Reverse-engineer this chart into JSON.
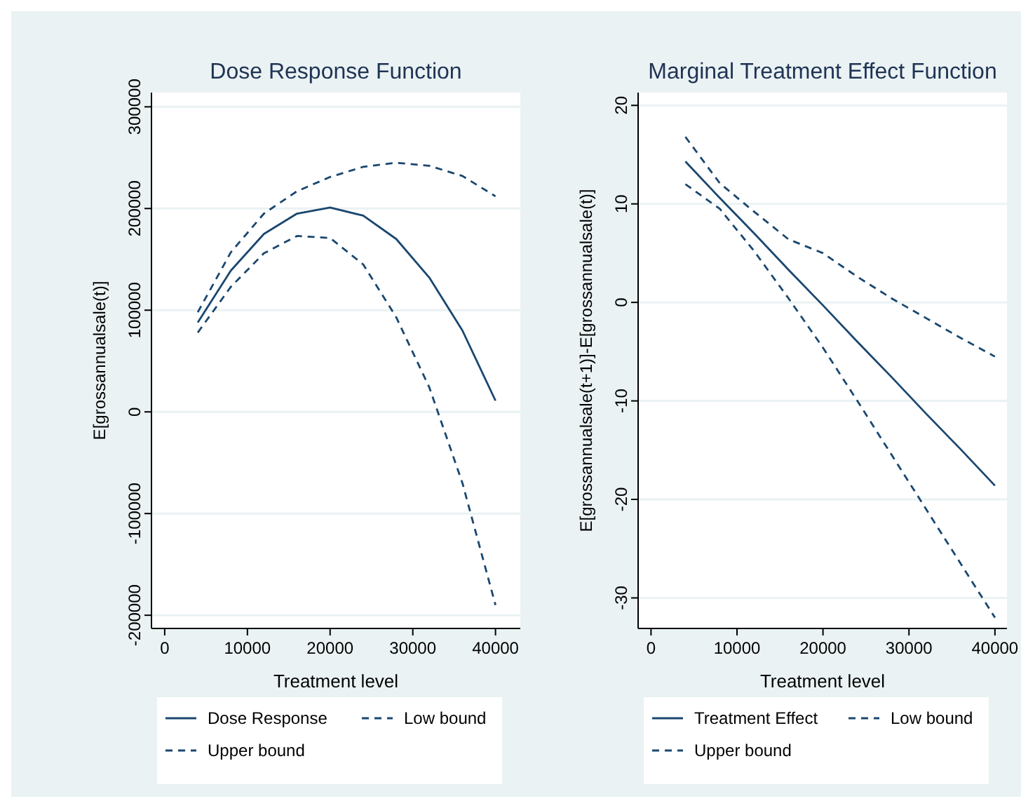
{
  "chart_data": [
    {
      "type": "line",
      "title": "Dose Response Function",
      "xlabel": "Treatment level",
      "ylabel": "E[grossannualsale(t)]",
      "x": [
        4000,
        8000,
        12000,
        16000,
        20000,
        24000,
        28000,
        32000,
        36000,
        40000
      ],
      "series": [
        {
          "name": "Dose Response",
          "color": "#1a476f",
          "line_style": "solid",
          "values": [
            88000,
            139000,
            175000,
            195000,
            201000,
            193000,
            170000,
            132000,
            80000,
            11000
          ]
        },
        {
          "name": "Low bound",
          "color": "#1a476f",
          "line_style": "dashed",
          "values": [
            78000,
            123000,
            156000,
            173000,
            171000,
            145000,
            93000,
            24000,
            -70000,
            -190000
          ]
        },
        {
          "name": "Upper bound",
          "color": "#1a476f",
          "line_style": "dashed",
          "values": [
            98000,
            157000,
            195000,
            217000,
            231000,
            241000,
            245000,
            242000,
            232000,
            212000
          ]
        }
      ],
      "xlim": [
        -1600,
        43000
      ],
      "xticks": [
        0,
        10000,
        20000,
        30000,
        40000
      ],
      "ylim": [
        -213000,
        314000
      ],
      "yticks": [
        -200000,
        -100000,
        0,
        100000,
        200000,
        300000
      ],
      "grid": "y",
      "legend": "bottom"
    },
    {
      "type": "line",
      "title": "Marginal Treatment Effect Function",
      "xlabel": "Treatment level",
      "ylabel": "E[grossannualsale(t+1)]-E[grossannualsale(t)]",
      "x": [
        4000,
        8000,
        12000,
        16000,
        20000,
        24000,
        28000,
        32000,
        36000,
        40000
      ],
      "series": [
        {
          "name": "Treatment Effect",
          "color": "#1a476f",
          "line_style": "solid",
          "values": [
            14.3,
            10.6,
            7.0,
            3.3,
            -0.3,
            -4.0,
            -7.6,
            -11.3,
            -14.9,
            -18.6
          ]
        },
        {
          "name": "Low bound",
          "color": "#1a476f",
          "line_style": "dashed",
          "values": [
            12.0,
            9.5,
            5.2,
            0.4,
            -4.6,
            -10.0,
            -15.5,
            -21.0,
            -26.5,
            -32.0
          ]
        },
        {
          "name": "Upper bound",
          "color": "#1a476f",
          "line_style": "dashed",
          "values": [
            16.8,
            12.1,
            9.2,
            6.4,
            5.0,
            2.6,
            0.4,
            -1.6,
            -3.6,
            -5.5
          ]
        }
      ],
      "xlim": [
        -1500,
        41400
      ],
      "xticks": [
        0,
        10000,
        20000,
        30000,
        40000
      ],
      "ylim": [
        -33.1,
        21.3
      ],
      "yticks": [
        -30,
        -20,
        -10,
        0,
        10,
        20
      ],
      "grid": "y",
      "legend": "bottom"
    }
  ]
}
